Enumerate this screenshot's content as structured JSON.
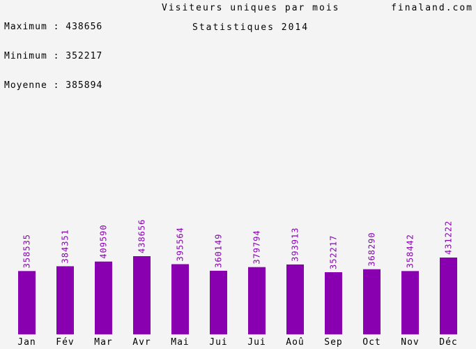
{
  "header": {
    "max_label": "Maximum : 438656",
    "min_label": "Minimum : 352217",
    "avg_label": "Moyenne : 385894",
    "title": "Visiteurs uniques par mois",
    "subtitle": "Statistiques 2014",
    "site": "finaland.com"
  },
  "chart_data": {
    "type": "bar",
    "title": "Visiteurs uniques par mois",
    "subtitle": "Statistiques 2014",
    "categories": [
      "Jan",
      "Fév",
      "Mar",
      "Avr",
      "Mai",
      "Jui",
      "Jui",
      "Aoû",
      "Sep",
      "Oct",
      "Nov",
      "Déc"
    ],
    "values": [
      358535,
      384351,
      409590,
      438656,
      395564,
      360149,
      379794,
      393913,
      352217,
      368290,
      358442,
      431222
    ],
    "value_labels": [
      "358535",
      "384351",
      "409590",
      "438656",
      "395564",
      "360149",
      "379794",
      "393913",
      "352217",
      "368290",
      "358442",
      "431222"
    ],
    "ylim": [
      0,
      438656
    ],
    "grid": false,
    "colors": {
      "bar": "#8800b0",
      "value_label": "#8800b0",
      "background": "#f4f4f4"
    }
  }
}
